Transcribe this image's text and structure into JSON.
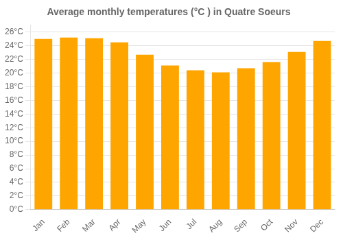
{
  "chart_data": {
    "type": "bar",
    "title": "Average monthly temperatures (°C ) in Quatre Soeurs",
    "categories": [
      "Jan",
      "Feb",
      "Mar",
      "Apr",
      "May",
      "Jun",
      "Jul",
      "Aug",
      "Sep",
      "Oct",
      "Nov",
      "Dec"
    ],
    "values": [
      25.0,
      25.2,
      25.1,
      24.5,
      22.7,
      21.1,
      20.4,
      20.1,
      20.7,
      21.6,
      23.1,
      24.7
    ],
    "color": "#FFA500",
    "ylim": [
      0,
      27
    ],
    "yticks": [
      {
        "value": 0,
        "label": "0°C"
      },
      {
        "value": 2,
        "label": "2°C"
      },
      {
        "value": 4,
        "label": "4°C"
      },
      {
        "value": 6,
        "label": "6°C"
      },
      {
        "value": 8,
        "label": "8°C"
      },
      {
        "value": 10,
        "label": "10°C"
      },
      {
        "value": 12,
        "label": "12°C"
      },
      {
        "value": 14,
        "label": "14°C"
      },
      {
        "value": 16,
        "label": "16°C"
      },
      {
        "value": 18,
        "label": "18°C"
      },
      {
        "value": 20,
        "label": "20°C"
      },
      {
        "value": 22,
        "label": "22°C"
      },
      {
        "value": 24,
        "label": "24°C"
      },
      {
        "value": 26,
        "label": "26°C"
      }
    ],
    "grid": true
  }
}
